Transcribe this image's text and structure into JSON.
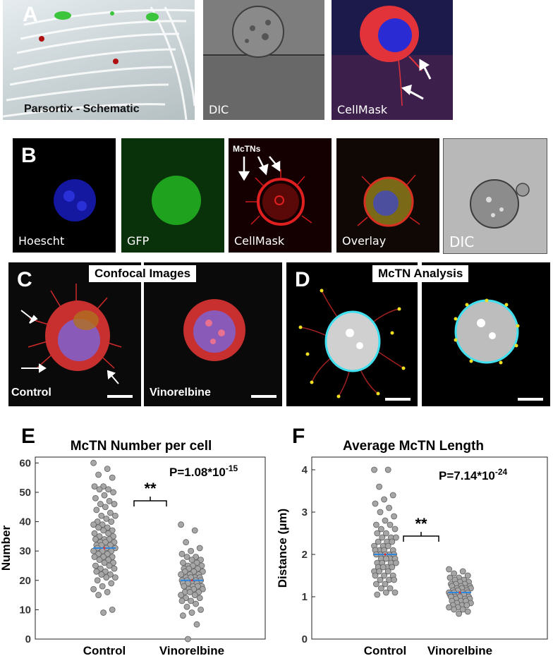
{
  "panel_a": {
    "label": "A",
    "captions": [
      "Parsortix - Schematic",
      "DIC",
      "CellMask"
    ]
  },
  "panel_b": {
    "label": "B",
    "captions": [
      "Hoescht",
      "GFP",
      "CellMask",
      "Overlay",
      "DIC"
    ],
    "mctns_label": "McTNs"
  },
  "panel_c": {
    "label": "C",
    "title": "Confocal Images",
    "captions": [
      "Control",
      "Vinorelbine"
    ]
  },
  "panel_d": {
    "label": "D",
    "title": "McTN Analysis"
  },
  "colors": {
    "point_fill": "#a6a6a6",
    "point_stroke": "#5f5f5f",
    "mean_line": "#2e86de",
    "mean_marker": "#e03030"
  },
  "chart_data": [
    {
      "type": "scatter",
      "panel_label": "E",
      "title": "McTN Number per cell",
      "ylabel": "Number",
      "xlabel": "",
      "categories": [
        "Control",
        "Vinorelbine"
      ],
      "ylim": [
        0,
        62
      ],
      "yticks": [
        0,
        10,
        20,
        30,
        40,
        50,
        60
      ],
      "grid": false,
      "pvalue": {
        "base": "P=1.08*10",
        "exp": "-15"
      },
      "significance": "**",
      "means": [
        31,
        20
      ],
      "series": [
        {
          "category": "Control",
          "values": [
            60,
            58,
            56,
            55,
            52,
            52,
            51,
            51,
            50,
            49,
            48,
            47,
            46,
            46,
            45,
            44,
            43,
            42,
            42,
            41,
            40,
            40,
            39,
            39,
            38,
            38,
            37,
            37,
            36,
            36,
            35,
            35,
            34,
            34,
            34,
            33,
            33,
            33,
            32,
            32,
            32,
            31,
            31,
            31,
            30,
            30,
            30,
            29,
            29,
            28,
            28,
            28,
            27,
            27,
            26,
            26,
            25,
            25,
            24,
            24,
            23,
            23,
            22,
            22,
            21,
            21,
            20,
            19,
            18,
            17,
            16,
            15,
            10,
            9
          ]
        },
        {
          "category": "Vinorelbine",
          "values": [
            39,
            37,
            33,
            31,
            30,
            29,
            28,
            28,
            27,
            27,
            26,
            26,
            25,
            25,
            25,
            24,
            24,
            24,
            23,
            23,
            23,
            22,
            22,
            22,
            21,
            21,
            21,
            21,
            20,
            20,
            20,
            20,
            19,
            19,
            19,
            19,
            18,
            18,
            18,
            18,
            17,
            17,
            17,
            16,
            16,
            16,
            15,
            15,
            14,
            14,
            13,
            13,
            12,
            11,
            10,
            9,
            8,
            5,
            0
          ]
        }
      ]
    },
    {
      "type": "scatter",
      "panel_label": "F",
      "title": "Average McTN Length",
      "ylabel": "Distance (μm)",
      "xlabel": "",
      "categories": [
        "Control",
        "Vinorelbine"
      ],
      "ylim": [
        0,
        4.3
      ],
      "yticks": [
        0,
        1,
        2,
        3,
        4
      ],
      "grid": false,
      "pvalue": {
        "base": "P=7.14*10",
        "exp": "-24"
      },
      "significance": "**",
      "means": [
        2.0,
        1.1
      ],
      "series": [
        {
          "category": "Control",
          "values": [
            4.0,
            4.0,
            3.6,
            3.4,
            3.3,
            3.2,
            3.1,
            3.0,
            2.9,
            2.8,
            2.7,
            2.7,
            2.6,
            2.6,
            2.5,
            2.5,
            2.4,
            2.4,
            2.4,
            2.3,
            2.3,
            2.3,
            2.2,
            2.2,
            2.2,
            2.1,
            2.1,
            2.1,
            2.1,
            2.0,
            2.0,
            2.0,
            2.0,
            2.0,
            1.9,
            1.9,
            1.9,
            1.9,
            1.8,
            1.8,
            1.8,
            1.8,
            1.7,
            1.7,
            1.7,
            1.7,
            1.6,
            1.6,
            1.6,
            1.5,
            1.5,
            1.5,
            1.4,
            1.4,
            1.4,
            1.3,
            1.3,
            1.2,
            1.2,
            1.1,
            1.1,
            1.05
          ]
        },
        {
          "category": "Vinorelbine",
          "values": [
            1.65,
            1.6,
            1.55,
            1.5,
            1.45,
            1.45,
            1.4,
            1.4,
            1.35,
            1.35,
            1.3,
            1.3,
            1.3,
            1.25,
            1.25,
            1.25,
            1.2,
            1.2,
            1.2,
            1.2,
            1.15,
            1.15,
            1.15,
            1.1,
            1.1,
            1.1,
            1.1,
            1.05,
            1.05,
            1.05,
            1.0,
            1.0,
            1.0,
            1.0,
            0.95,
            0.95,
            0.95,
            0.9,
            0.9,
            0.9,
            0.85,
            0.85,
            0.8,
            0.8,
            0.8,
            0.75,
            0.75,
            0.7,
            0.7,
            0.65,
            0.6
          ]
        }
      ]
    }
  ]
}
